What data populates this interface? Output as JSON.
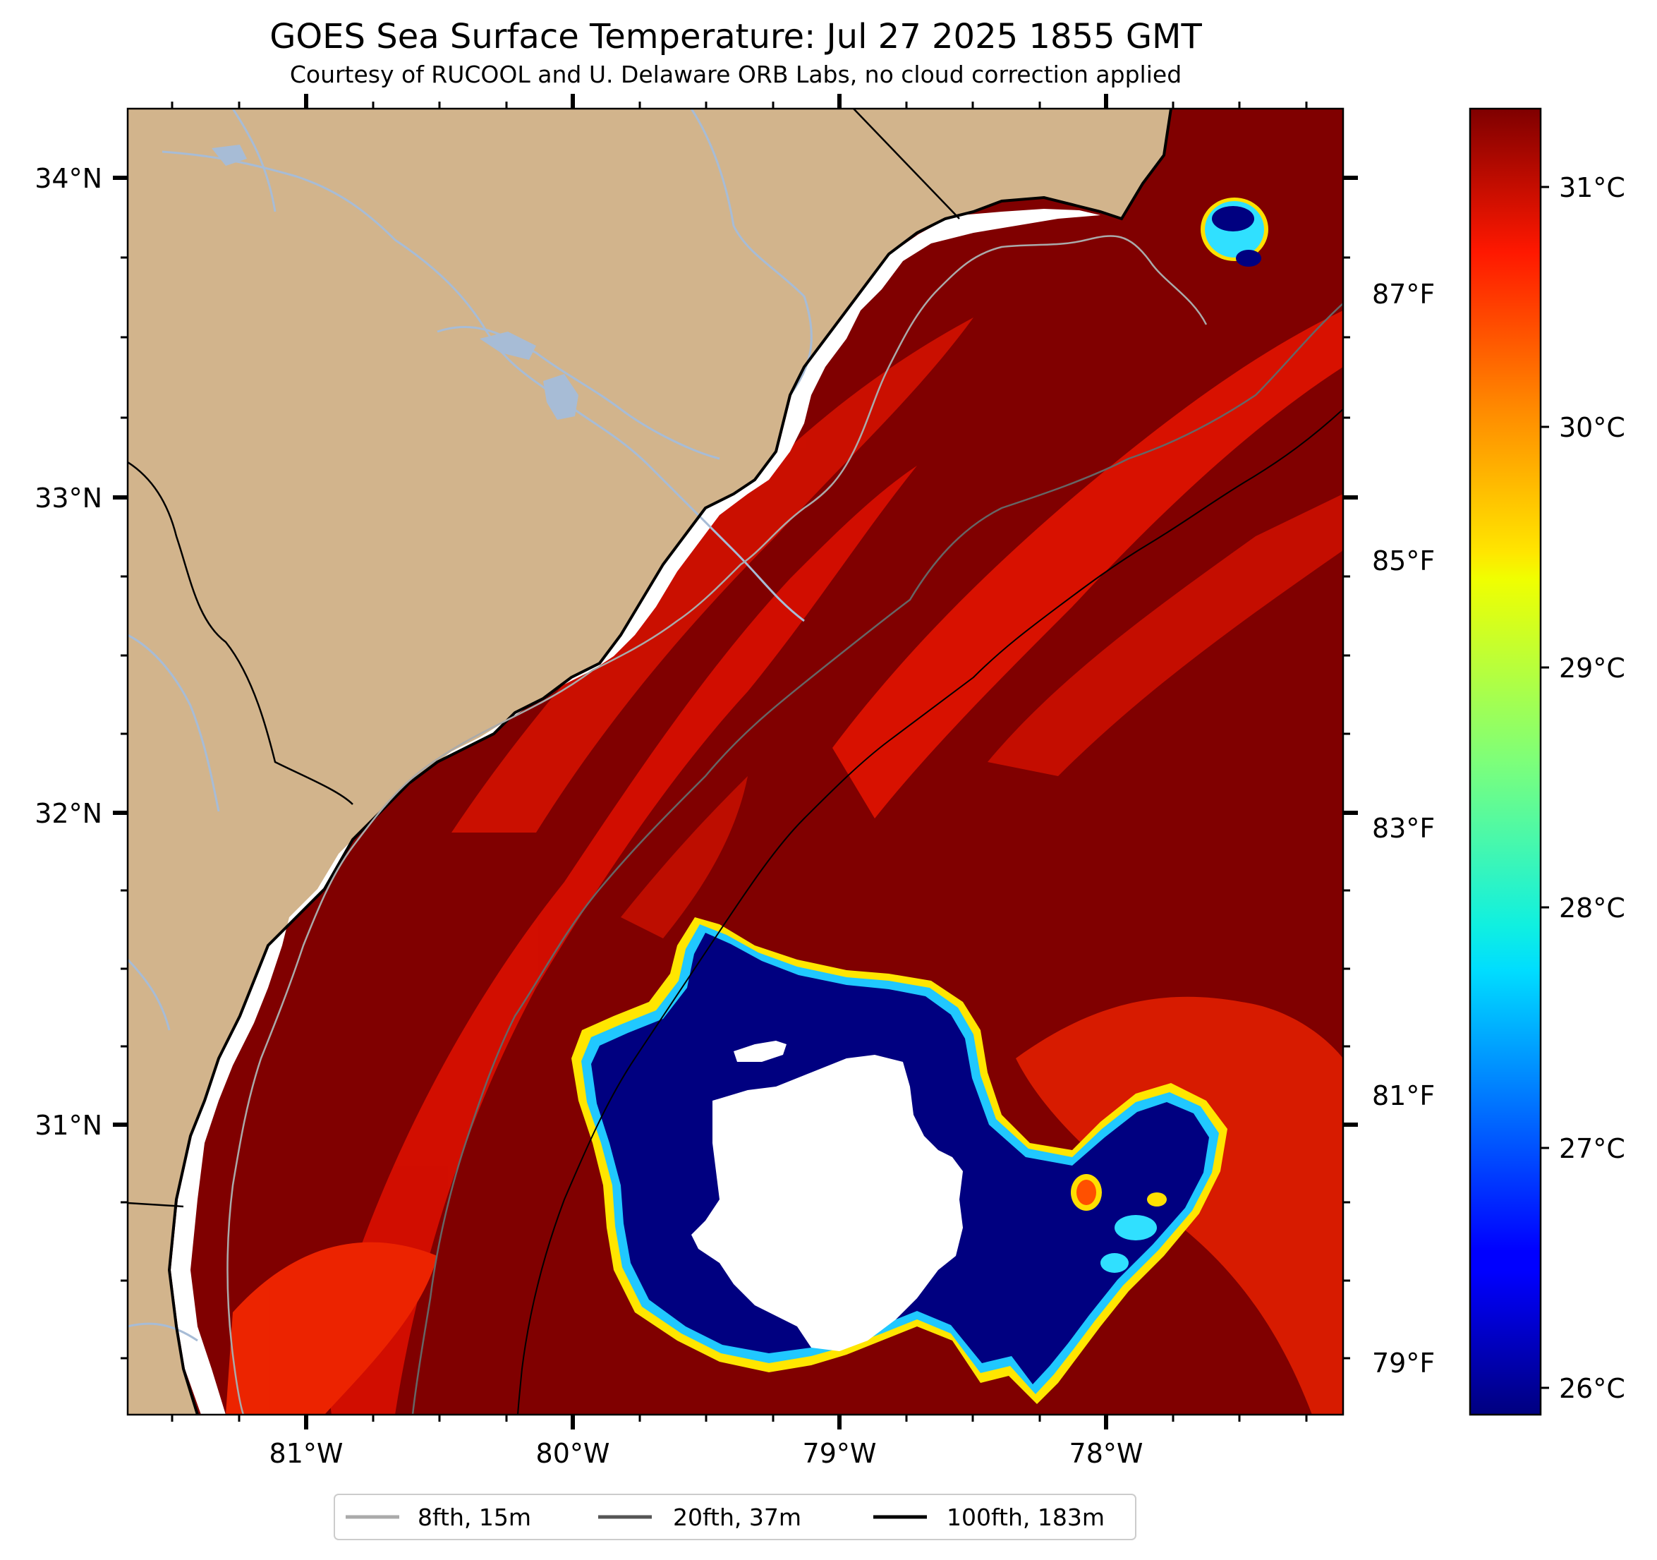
{
  "title": "GOES Sea Surface Temperature: Jul 27 2025 1855 GMT",
  "subtitle": "Courtesy of RUCOOL and U. Delaware ORB Labs, no cloud correction applied",
  "map": {
    "lon_range": [
      -81.67,
      -77.1
    ],
    "lat_range": [
      30.1,
      34.2
    ],
    "lat_labels": [
      "34°N",
      "33°N",
      "32°N",
      "31°N"
    ],
    "lon_labels": [
      "81°W",
      "80°W",
      "79°W",
      "78°W"
    ],
    "right_labels": [
      "87°F",
      "85°F",
      "83°F",
      "81°F",
      "79°F"
    ],
    "land_color": "#d2b48c",
    "sea_color_warm": "#800000",
    "cloud_mask_color": "#ffffff"
  },
  "colorbar": {
    "cmap": "jet",
    "range_c": [
      25.85,
      31.3
    ],
    "labels": [
      "31°C",
      "30°C",
      "29°C",
      "28°C",
      "27°C",
      "26°C"
    ]
  },
  "legend": {
    "items": [
      {
        "label": "8fth, 15m",
        "color": "#aaaaaa"
      },
      {
        "label": "20fth, 37m",
        "color": "#555555"
      },
      {
        "label": "100fth, 183m",
        "color": "#000000"
      }
    ]
  }
}
